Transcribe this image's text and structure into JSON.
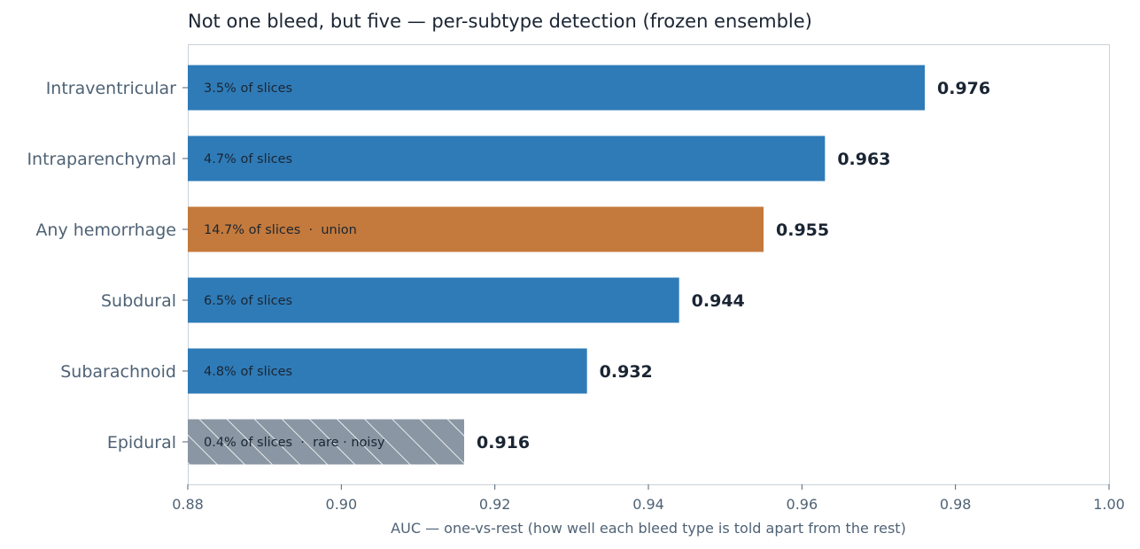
{
  "chart_data": {
    "type": "bar",
    "orientation": "horizontal",
    "title": "Not one bleed, but five — per-subtype detection (frozen ensemble)",
    "xlabel": "AUC — one-vs-rest (how well each bleed type is told apart from the rest)",
    "ylabel": "",
    "xlim": [
      0.88,
      1.0
    ],
    "xticks": [
      "0.88",
      "0.90",
      "0.92",
      "0.94",
      "0.96",
      "0.98",
      "1.00"
    ],
    "grid": false,
    "categories": [
      "Intraventricular",
      "Intraparenchymal",
      "Any hemorrhage",
      "Subdural",
      "Subarachnoid",
      "Epidural"
    ],
    "values": [
      0.976,
      0.963,
      0.955,
      0.944,
      0.932,
      0.916
    ],
    "value_labels": [
      "0.976",
      "0.963",
      "0.955",
      "0.944",
      "0.932",
      "0.916"
    ],
    "bar_annotations": [
      "3.5% of slices",
      "4.7% of slices",
      "14.7% of slices  ·  union",
      "6.5% of slices",
      "4.8% of slices",
      "0.4% of slices  ·  rare · noisy"
    ],
    "bar_styles": [
      "solid",
      "solid",
      "solid",
      "solid",
      "solid",
      "hatched"
    ],
    "bar_colors": [
      "#2f7bb7",
      "#2f7bb7",
      "#c47a3c",
      "#2f7bb7",
      "#2f7bb7",
      "#8a96a3"
    ]
  }
}
